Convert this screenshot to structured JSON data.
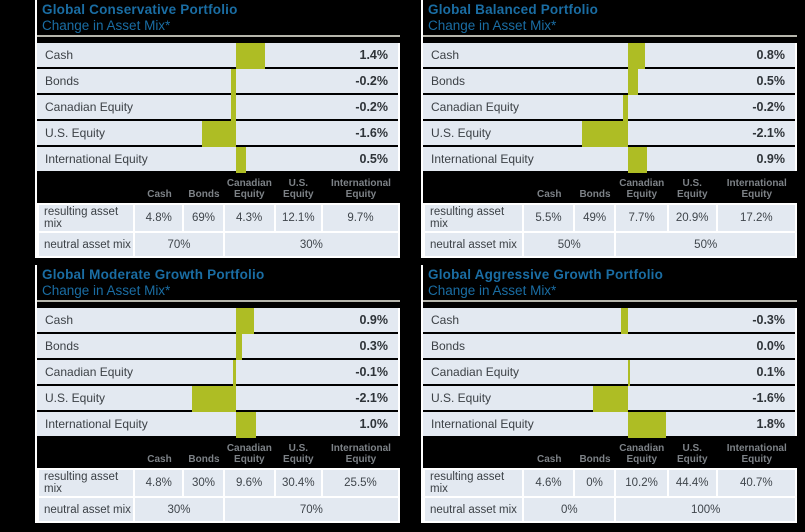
{
  "page": {
    "background": "#000000"
  },
  "colors": {
    "title_blue": "#1a6da3",
    "bar_green": "#aebd24",
    "row_background": "#e3e9f1",
    "table_header_text": "#7d8287",
    "divider_gray": "#b5b5ac"
  },
  "labels": {
    "resulting": "resulting asset mix",
    "neutral": "neutral asset mix"
  },
  "chart_data": [
    {
      "type": "bar",
      "orientation": "horizontal",
      "title": "Global Conservative Portfolio",
      "subtitle": "Change in Asset Mix*",
      "categories": [
        "Cash",
        "Bonds",
        "Canadian Equity",
        "U.S. Equity",
        "International Equity"
      ],
      "values": [
        1.4,
        -0.2,
        -0.2,
        -1.6,
        0.5
      ],
      "value_labels": [
        "1.4%",
        "-0.2%",
        "-0.2%",
        "-1.6%",
        "0.5%"
      ],
      "xlim": [
        -2.7,
        2.2
      ],
      "table": {
        "headers": [
          "Cash",
          "Bonds",
          "Canadian\nEquity",
          "U.S.\nEquity",
          "International\nEquity"
        ],
        "resulting": [
          "4.8%",
          "69%",
          "4.3%",
          "12.1%",
          "9.7%"
        ],
        "neutral": [
          "70%",
          "30%"
        ]
      }
    },
    {
      "type": "bar",
      "orientation": "horizontal",
      "title": "Global Balanced Portfolio",
      "subtitle": "Change in Asset Mix*",
      "categories": [
        "Cash",
        "Bonds",
        "Canadian Equity",
        "U.S. Equity",
        "International Equity"
      ],
      "values": [
        0.8,
        0.5,
        -0.2,
        -2.1,
        0.9
      ],
      "value_labels": [
        "0.8%",
        "0.5%",
        "-0.2%",
        "-2.1%",
        "0.9%"
      ],
      "xlim": [
        -2.7,
        2.2
      ],
      "table": {
        "headers": [
          "Cash",
          "Bonds",
          "Canadian\nEquity",
          "U.S.\nEquity",
          "International\nEquity"
        ],
        "resulting": [
          "5.5%",
          "49%",
          "7.7%",
          "20.9%",
          "17.2%"
        ],
        "neutral": [
          "50%",
          "50%"
        ]
      }
    },
    {
      "type": "bar",
      "orientation": "horizontal",
      "title": "Global Moderate Growth Portfolio",
      "subtitle": "Change in Asset Mix*",
      "categories": [
        "Cash",
        "Bonds",
        "Canadian Equity",
        "U.S. Equity",
        "International Equity"
      ],
      "values": [
        0.9,
        0.3,
        -0.1,
        -2.1,
        1.0
      ],
      "value_labels": [
        "0.9%",
        "0.3%",
        "-0.1%",
        "-2.1%",
        "1.0%"
      ],
      "xlim": [
        -2.7,
        2.2
      ],
      "table": {
        "headers": [
          "Cash",
          "Bonds",
          "Canadian\nEquity",
          "U.S.\nEquity",
          "International\nEquity"
        ],
        "resulting": [
          "4.8%",
          "30%",
          "9.6%",
          "30.4%",
          "25.5%"
        ],
        "neutral": [
          "30%",
          "70%"
        ]
      }
    },
    {
      "type": "bar",
      "orientation": "horizontal",
      "title": "Global Aggressive Growth Portfolio",
      "subtitle": "Change in Asset Mix*",
      "categories": [
        "Cash",
        "Bonds",
        "Canadian Equity",
        "U.S. Equity",
        "International Equity"
      ],
      "values": [
        -0.3,
        0.0,
        0.1,
        -1.6,
        1.8
      ],
      "value_labels": [
        "-0.3%",
        "0.0%",
        "0.1%",
        "-1.6%",
        "1.8%"
      ],
      "xlim": [
        -2.7,
        2.2
      ],
      "table": {
        "headers": [
          "Cash",
          "Bonds",
          "Canadian\nEquity",
          "U.S.\nEquity",
          "International\nEquity"
        ],
        "resulting": [
          "4.6%",
          "0%",
          "10.2%",
          "44.4%",
          "40.7%"
        ],
        "neutral": [
          "0%",
          "100%"
        ]
      }
    }
  ]
}
